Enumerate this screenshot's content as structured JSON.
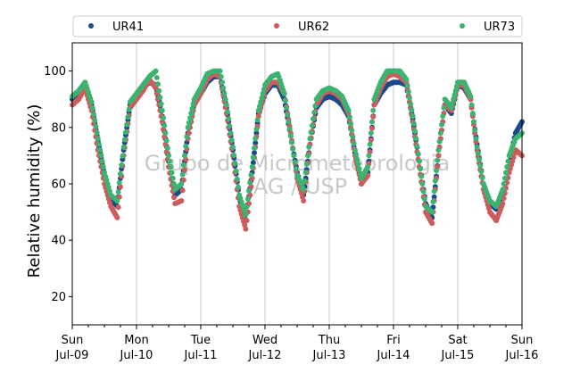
{
  "chart_data": {
    "type": "scatter",
    "title": "",
    "xlabel": "",
    "ylabel": "Relative humidity (%)",
    "ylim": [
      10,
      110
    ],
    "yticks": [
      20,
      40,
      60,
      80,
      100
    ],
    "xlim": [
      0,
      7
    ],
    "x_unit": "days",
    "xtick_labels": [
      {
        "day": "Sun",
        "date": "Jul-09"
      },
      {
        "day": "Mon",
        "date": "Jul-10"
      },
      {
        "day": "Tue",
        "date": "Jul-11"
      },
      {
        "day": "Wed",
        "date": "Jul-12"
      },
      {
        "day": "Thu",
        "date": "Jul-13"
      },
      {
        "day": "Fri",
        "date": "Jul-14"
      },
      {
        "day": "Sat",
        "date": "Jul-15"
      },
      {
        "day": "Sun",
        "date": "Jul-16"
      }
    ],
    "grid": "vertical-major",
    "legend_position": "top",
    "watermark": [
      "Grupo de Micrometeorologia",
      "IAG / USP"
    ],
    "series": [
      {
        "name": "UR41",
        "color": "#1a4a8a",
        "x": [
          0.0,
          0.1,
          0.2,
          0.3,
          0.4,
          0.5,
          0.6,
          0.7,
          0.8,
          0.9,
          1.0,
          1.1,
          1.2,
          1.3,
          1.4,
          1.5,
          1.6,
          1.7,
          1.8,
          1.9,
          2.0,
          2.1,
          2.2,
          2.3,
          2.4,
          2.5,
          2.6,
          2.7,
          2.8,
          2.9,
          3.0,
          3.1,
          3.2,
          3.3,
          3.4,
          3.5,
          3.6,
          3.7,
          3.8,
          3.9,
          4.0,
          4.1,
          4.2,
          4.3,
          4.4,
          4.5,
          4.6,
          4.7,
          4.8,
          4.9,
          5.0,
          5.1,
          5.2,
          5.3,
          5.4,
          5.5,
          5.6,
          5.7,
          5.8,
          5.9,
          6.0,
          6.1,
          6.2,
          6.3,
          6.4,
          6.5,
          6.6,
          6.7,
          6.8,
          6.9,
          7.0
        ],
        "y": [
          90,
          92,
          95,
          88,
          75,
          63,
          55,
          52,
          72,
          88,
          91,
          94,
          96,
          95,
          84,
          68,
          56,
          58,
          78,
          89,
          92,
          96,
          98,
          98,
          87,
          72,
          55,
          47,
          64,
          85,
          92,
          95,
          95,
          90,
          77,
          64,
          56,
          74,
          87,
          90,
          91,
          90,
          88,
          84,
          71,
          60,
          64,
          88,
          92,
          95,
          96,
          96,
          95,
          83,
          68,
          53,
          48,
          70,
          88,
          85,
          95,
          94,
          90,
          74,
          60,
          53,
          51,
          56,
          68,
          78,
          82
        ]
      },
      {
        "name": "UR62",
        "color": "#cd5c5c",
        "x": [
          0.0,
          0.1,
          0.2,
          0.3,
          0.4,
          0.5,
          0.6,
          0.7,
          0.8,
          0.9,
          1.0,
          1.1,
          1.2,
          1.3,
          1.4,
          1.5,
          1.6,
          1.7,
          1.8,
          1.9,
          2.0,
          2.1,
          2.2,
          2.3,
          2.4,
          2.5,
          2.6,
          2.7,
          2.8,
          2.9,
          3.0,
          3.1,
          3.2,
          3.3,
          3.4,
          3.5,
          3.6,
          3.7,
          3.8,
          3.9,
          4.0,
          4.1,
          4.2,
          4.3,
          4.4,
          4.5,
          4.6,
          4.7,
          4.8,
          4.9,
          5.0,
          5.1,
          5.2,
          5.3,
          5.4,
          5.5,
          5.6,
          5.7,
          5.8,
          5.9,
          6.0,
          6.1,
          6.2,
          6.3,
          6.4,
          6.5,
          6.6,
          6.7,
          6.8,
          6.9,
          7.0
        ],
        "y": [
          88,
          90,
          94,
          86,
          72,
          60,
          52,
          48,
          70,
          87,
          90,
          93,
          97,
          94,
          82,
          66,
          53,
          54,
          76,
          88,
          92,
          97,
          99,
          98,
          85,
          70,
          52,
          44,
          62,
          84,
          93,
          96,
          96,
          92,
          78,
          62,
          54,
          74,
          88,
          92,
          93,
          92,
          90,
          85,
          70,
          60,
          63,
          88,
          94,
          98,
          99,
          98,
          96,
          82,
          66,
          50,
          46,
          70,
          88,
          86,
          95,
          95,
          90,
          72,
          58,
          50,
          47,
          53,
          64,
          72,
          70
        ]
      },
      {
        "name": "UR73",
        "color": "#3cb371",
        "x": [
          0.0,
          0.1,
          0.2,
          0.3,
          0.4,
          0.5,
          0.6,
          0.7,
          0.8,
          0.9,
          1.0,
          1.1,
          1.2,
          1.3,
          1.4,
          1.5,
          1.6,
          1.7,
          1.8,
          1.9,
          2.0,
          2.1,
          2.2,
          2.3,
          2.4,
          2.5,
          2.6,
          2.7,
          2.8,
          2.9,
          3.0,
          3.1,
          3.2,
          3.3,
          3.4,
          3.5,
          3.6,
          3.7,
          3.8,
          3.9,
          4.0,
          4.1,
          4.2,
          4.3,
          4.4,
          4.5,
          4.6,
          4.7,
          4.8,
          4.9,
          5.0,
          5.1,
          5.2,
          5.3,
          5.4,
          5.5,
          5.6,
          5.7,
          5.8,
          5.9,
          6.0,
          6.1,
          6.2,
          6.3,
          6.4,
          6.5,
          6.6,
          6.7,
          6.8,
          6.9,
          7.0
        ],
        "y": [
          91,
          93,
          96,
          89,
          76,
          64,
          56,
          54,
          73,
          89,
          92,
          95,
          98,
          100,
          86,
          70,
          58,
          60,
          80,
          90,
          94,
          99,
          100,
          100,
          88,
          73,
          56,
          49,
          66,
          86,
          95,
          98,
          99,
          92,
          77,
          63,
          58,
          76,
          90,
          93,
          94,
          93,
          91,
          86,
          72,
          62,
          66,
          90,
          96,
          100,
          100,
          100,
          97,
          84,
          68,
          52,
          50,
          72,
          90,
          87,
          96,
          96,
          91,
          73,
          60,
          54,
          52,
          58,
          70,
          76,
          78
        ]
      }
    ]
  }
}
